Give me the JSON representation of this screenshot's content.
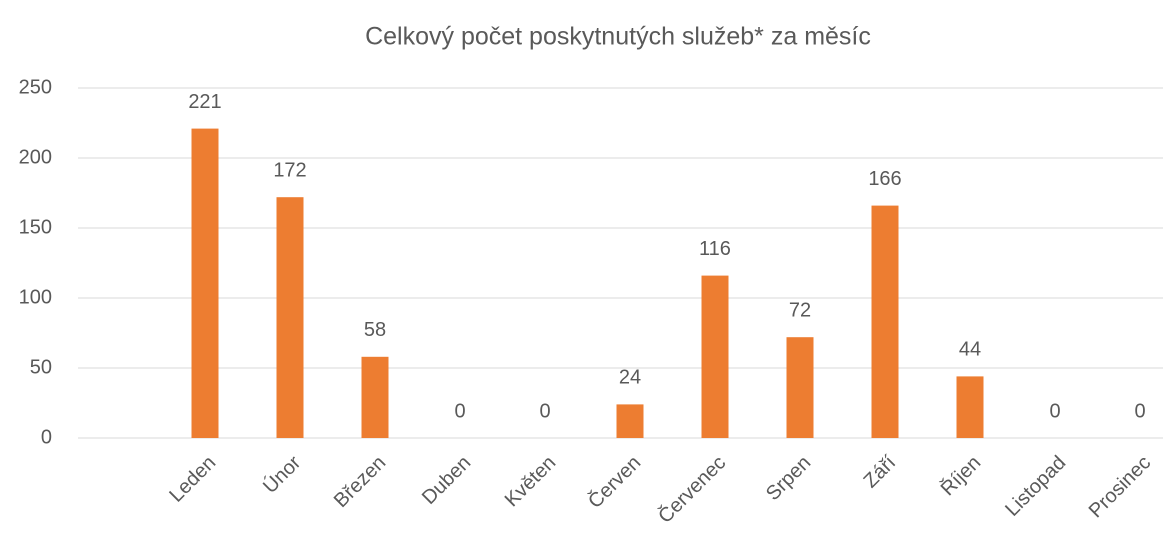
{
  "chart_data": {
    "type": "bar",
    "title": "Celkový počet poskytnutých služeb* za měsíc",
    "categories": [
      "Leden",
      "Únor",
      "Březen",
      "Duben",
      "Květen",
      "Červen",
      "Červenec",
      "Srpen",
      "Září",
      "Říjen",
      "Listopad",
      "Prosinec"
    ],
    "values": [
      221,
      172,
      58,
      0,
      0,
      24,
      116,
      72,
      166,
      44,
      0,
      0
    ],
    "color": "#ed7d31",
    "ylim": [
      0,
      250
    ],
    "yticks": [
      0,
      50,
      100,
      150,
      200,
      250
    ],
    "grid": true
  }
}
